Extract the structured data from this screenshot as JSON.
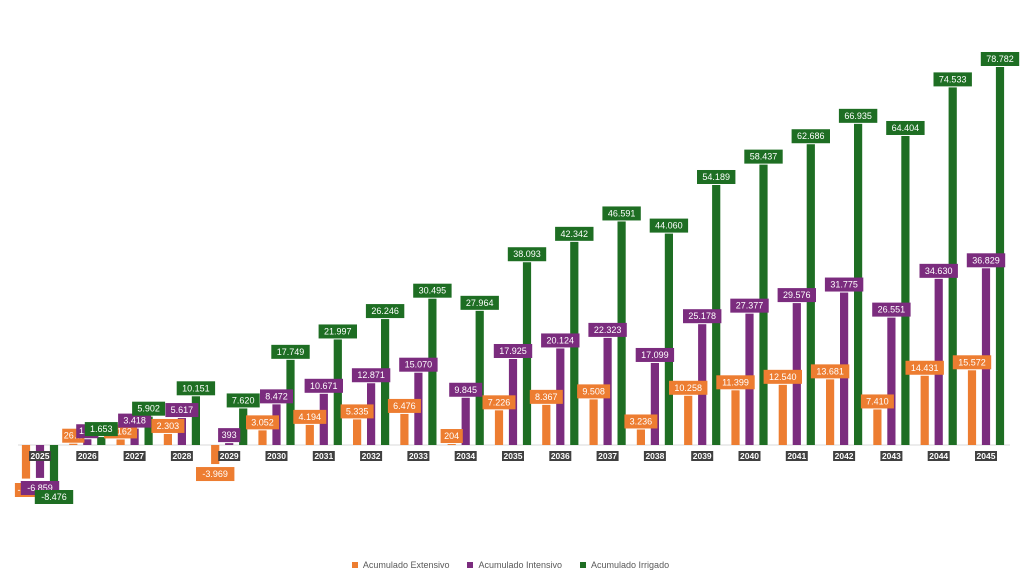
{
  "chart_data": {
    "type": "bar",
    "categories": [
      "2025",
      "2026",
      "2027",
      "2028",
      "2029",
      "2030",
      "2031",
      "2032",
      "2033",
      "2034",
      "2035",
      "2036",
      "2037",
      "2038",
      "2039",
      "2040",
      "2041",
      "2042",
      "2043",
      "2044",
      "2045"
    ],
    "series": [
      {
        "name": "Acumulado Extensivo",
        "color": "#ED7D31",
        "values": [
          -7000,
          269,
          1162,
          2303,
          -3969,
          3052,
          4194,
          5335,
          6476,
          204,
          7226,
          8367,
          9508,
          3236,
          10258,
          11399,
          12540,
          13681,
          7410,
          14431,
          15572
        ],
        "labels": [
          "-7…",
          "26…",
          "1.162",
          "2.303",
          "-3.969",
          "3.052",
          "4.194",
          "5.335",
          "6.476",
          "204",
          "7.226",
          "8.367",
          "9.508",
          "3.236",
          "10.258",
          "11.399",
          "12.540",
          "13.681",
          "7.410",
          "14.431",
          "15.572"
        ]
      },
      {
        "name": "Acumulado Intensivo",
        "color": "#7B2C7E",
        "values": [
          -6859,
          1200,
          3418,
          5617,
          393,
          8472,
          10671,
          12871,
          15070,
          9845,
          17925,
          20124,
          22323,
          17099,
          25178,
          27377,
          29576,
          31775,
          26551,
          34630,
          36829
        ],
        "labels": [
          "-6.859",
          "1.…",
          "3.418",
          "5.617",
          "393",
          "8.472",
          "10.671",
          "12.871",
          "15.070",
          "9.845",
          "17.925",
          "20.124",
          "22.323",
          "17.099",
          "25.178",
          "27.377",
          "29.576",
          "31.775",
          "26.551",
          "34.630",
          "36.829"
        ]
      },
      {
        "name": "Acumulado Irrigado",
        "color": "#1E6E23",
        "values": [
          -8476,
          1653,
          5902,
          10151,
          7620,
          17749,
          21997,
          26246,
          30495,
          27964,
          38093,
          42342,
          46591,
          44060,
          54189,
          58437,
          62686,
          66935,
          64404,
          74533,
          78782
        ],
        "labels": [
          "-8.476",
          "1.653",
          "5.902",
          "10.151",
          "7.620",
          "17.749",
          "21.997",
          "26.246",
          "30.495",
          "27.964",
          "38.093",
          "42.342",
          "46.591",
          "44.060",
          "54.189",
          "58.437",
          "62.686",
          "66.935",
          "64.404",
          "74.533",
          "78.782"
        ]
      }
    ],
    "legend": "bottom",
    "grid": false,
    "ylim": [
      -10000,
      80000
    ]
  }
}
